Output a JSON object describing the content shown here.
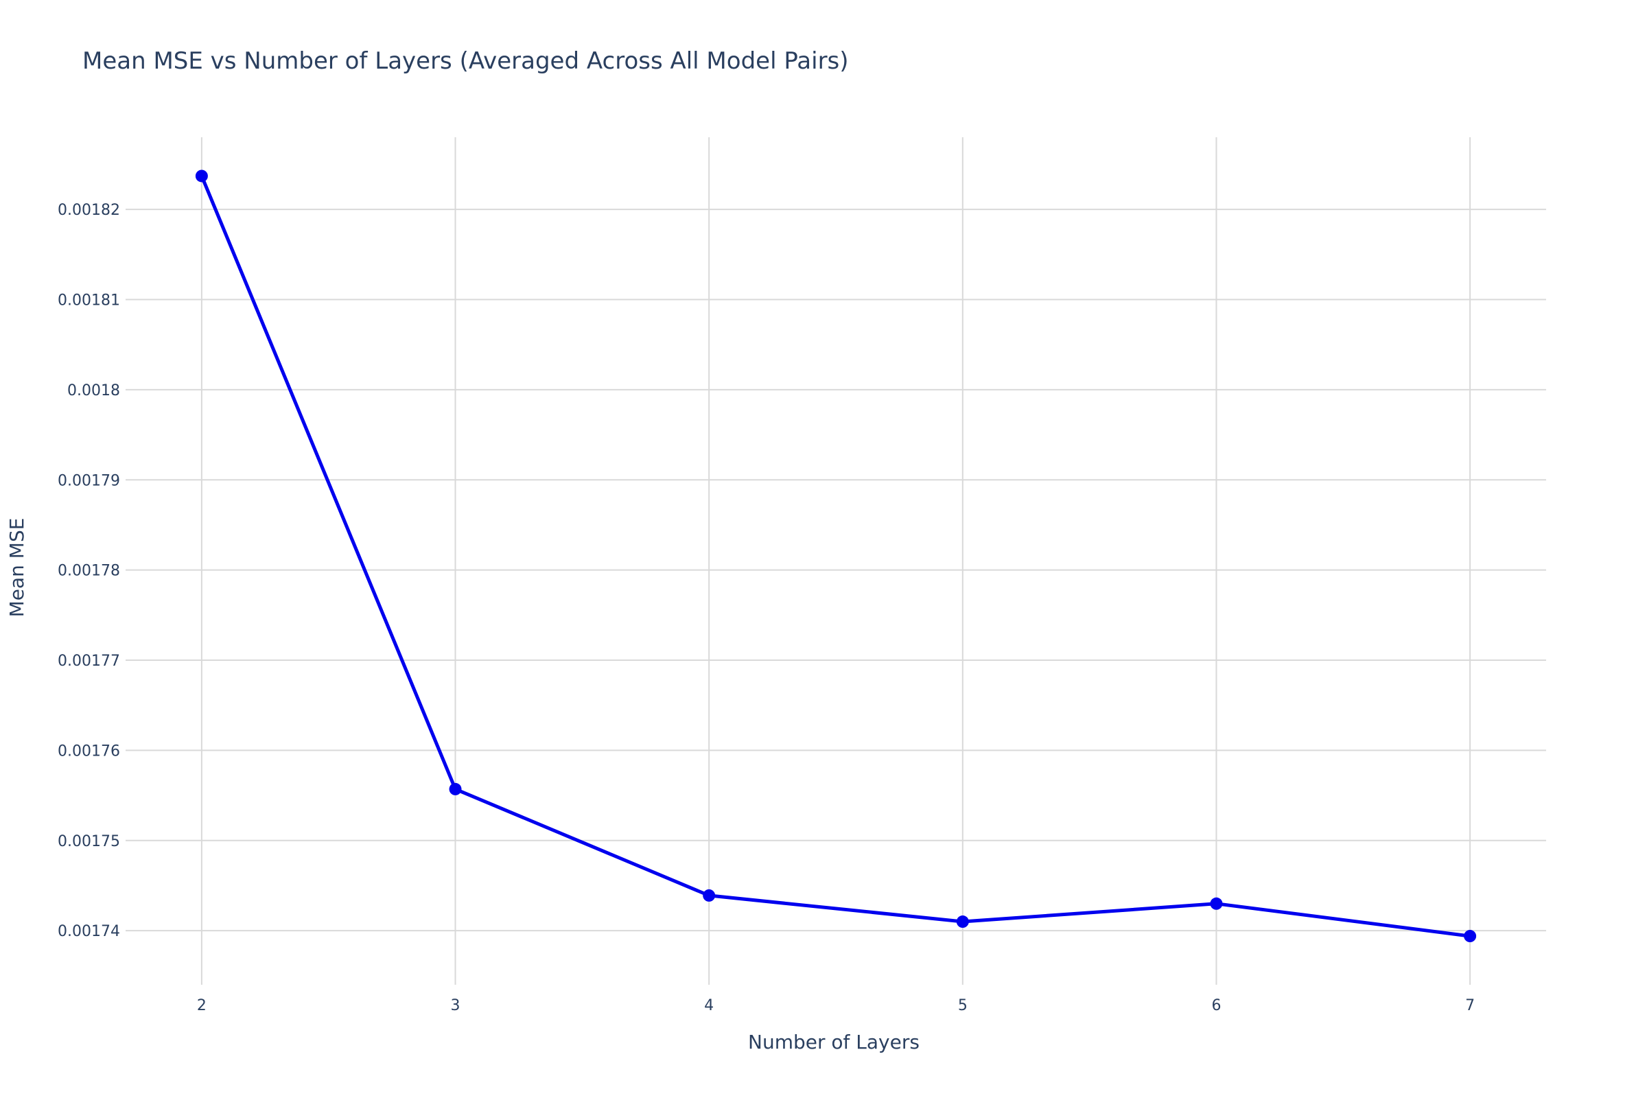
{
  "chart_data": {
    "type": "line",
    "title": "Mean MSE vs Number of Layers (Averaged Across All Model Pairs)",
    "xlabel": "Number of Layers",
    "ylabel": "Mean MSE",
    "x": [
      2,
      3,
      4,
      5,
      6,
      7
    ],
    "xticks": [
      "2",
      "3",
      "4",
      "5",
      "6",
      "7"
    ],
    "xlim": [
      1.7,
      7.3
    ],
    "yticks": [
      "0.00174",
      "0.00175",
      "0.00176",
      "0.00177",
      "0.00178",
      "0.00179",
      "0.0018",
      "0.00181",
      "0.00182"
    ],
    "ytick_values": [
      0.00174,
      0.00175,
      0.00176,
      0.00177,
      0.00178,
      0.00179,
      0.0018,
      0.00181,
      0.00182
    ],
    "ylim": [
      0.001734,
      0.001828
    ],
    "grid": true,
    "series": [
      {
        "values": [
          0.0018237,
          0.0017557,
          0.0017439,
          0.001741,
          0.001743,
          0.0017394
        ],
        "color": "#0000ee",
        "marker": "circle"
      }
    ]
  }
}
